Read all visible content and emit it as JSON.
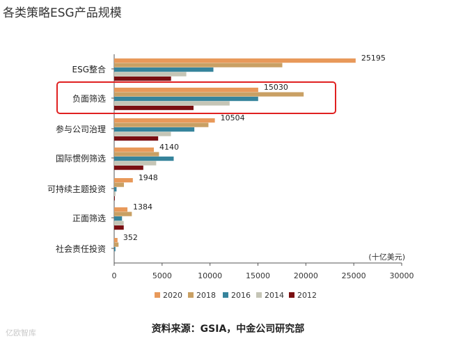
{
  "title": "各类策略ESG产品规模",
  "source": "资料来源：GSIA，中金公司研究部",
  "watermark": "亿欧智库",
  "chart_data": {
    "type": "bar",
    "orientation": "horizontal",
    "title": "各类策略ESG产品规模",
    "unit_label": "(十亿美元)",
    "categories": [
      "ESG整合",
      "负面筛选",
      "参与公司治理",
      "国际惯例筛选",
      "可持续主题投资",
      "正面筛选",
      "社会责任投资"
    ],
    "series": [
      {
        "name": "2020",
        "color": "#E8995A",
        "values": [
          25195,
          15030,
          10504,
          4140,
          1948,
          1384,
          352
        ]
      },
      {
        "name": "2018",
        "color": "#C9A064",
        "values": [
          17544,
          19771,
          9835,
          4679,
          1018,
          1842,
          455
        ]
      },
      {
        "name": "2016",
        "color": "#36849C",
        "values": [
          10353,
          15023,
          8365,
          6210,
          248,
          818,
          132
        ]
      },
      {
        "name": "2014",
        "color": "#C5C5B6",
        "values": [
          7527,
          12046,
          5919,
          4385,
          138,
          993,
          0
        ]
      },
      {
        "name": "2012",
        "color": "#7A0F12",
        "values": [
          5935,
          8280,
          4589,
          3038,
          70,
          999,
          0
        ]
      }
    ],
    "data_labels": [
      "25195",
      "15030",
      "10504",
      "4140",
      "1948",
      "1384",
      "352"
    ],
    "xlim": [
      0,
      30000
    ],
    "xticks": [
      0,
      5000,
      10000,
      15000,
      20000,
      25000,
      30000
    ],
    "tick_labels": [
      "0",
      "5000",
      "10000",
      "15000",
      "20000",
      "25000",
      "30000"
    ],
    "highlight_category": "负面筛选",
    "legend_position": "bottom"
  }
}
